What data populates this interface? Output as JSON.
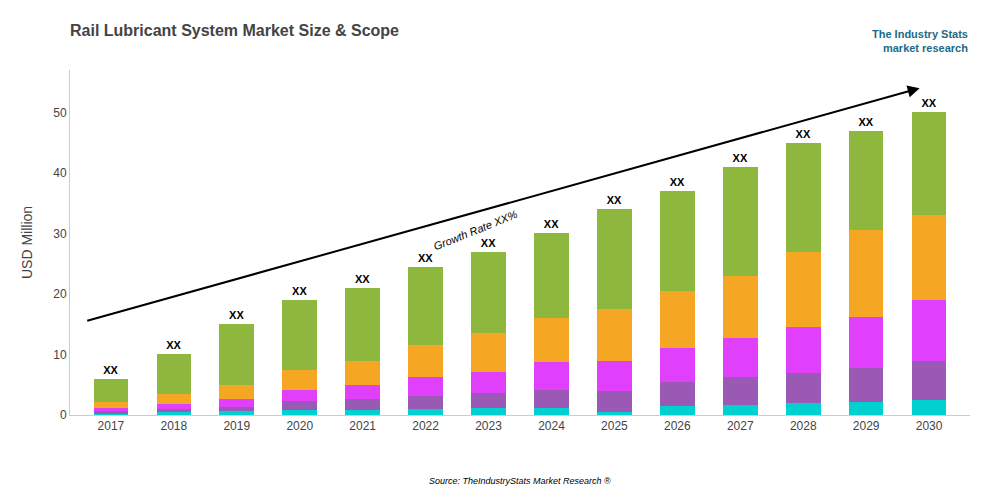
{
  "chart_data": {
    "type": "bar",
    "stacked": true,
    "title": "Rail Lubricant System Market Size & Scope",
    "ylabel": "USD Million",
    "categories": [
      "2017",
      "2018",
      "2019",
      "2020",
      "2021",
      "2022",
      "2023",
      "2024",
      "2025",
      "2026",
      "2027",
      "2028",
      "2029",
      "2030"
    ],
    "series": [
      {
        "color": "#00d0d0",
        "values": [
          0.3,
          0.5,
          0.7,
          0.8,
          0.9,
          1.0,
          1.1,
          1.2,
          0.5,
          1.5,
          1.7,
          2.0,
          2.2,
          2.5
        ]
      },
      {
        "color": "#9b59b6",
        "values": [
          0.3,
          0.5,
          0.7,
          1.5,
          1.8,
          2.2,
          2.5,
          3.0,
          3.5,
          4.0,
          4.5,
          5.0,
          5.5,
          6.5
        ]
      },
      {
        "color": "#e040fb",
        "values": [
          0.5,
          0.8,
          1.3,
          1.8,
          2.3,
          3.0,
          3.5,
          4.5,
          5.0,
          5.5,
          6.5,
          7.5,
          8.5,
          10.0
        ]
      },
      {
        "color": "#f5a623",
        "values": [
          1.1,
          1.7,
          2.3,
          3.4,
          4.0,
          5.3,
          6.4,
          7.3,
          8.5,
          9.5,
          10.3,
          12.5,
          14.3,
          14.0
        ]
      },
      {
        "color": "#8db83d",
        "values": [
          3.8,
          6.5,
          10.0,
          11.5,
          12.0,
          13.0,
          13.5,
          14.0,
          16.5,
          16.5,
          18.0,
          18.0,
          16.5,
          17.0
        ]
      }
    ],
    "ylim": [
      0,
      57
    ],
    "yticks": [
      0,
      10,
      20,
      30,
      40,
      50
    ],
    "grid": false,
    "legend": false,
    "annotations": [
      "XX",
      "Growth Rate XX%",
      "Source: TheIndustryStats Market Research ®",
      "The Industry Stats\nmarket research"
    ]
  }
}
